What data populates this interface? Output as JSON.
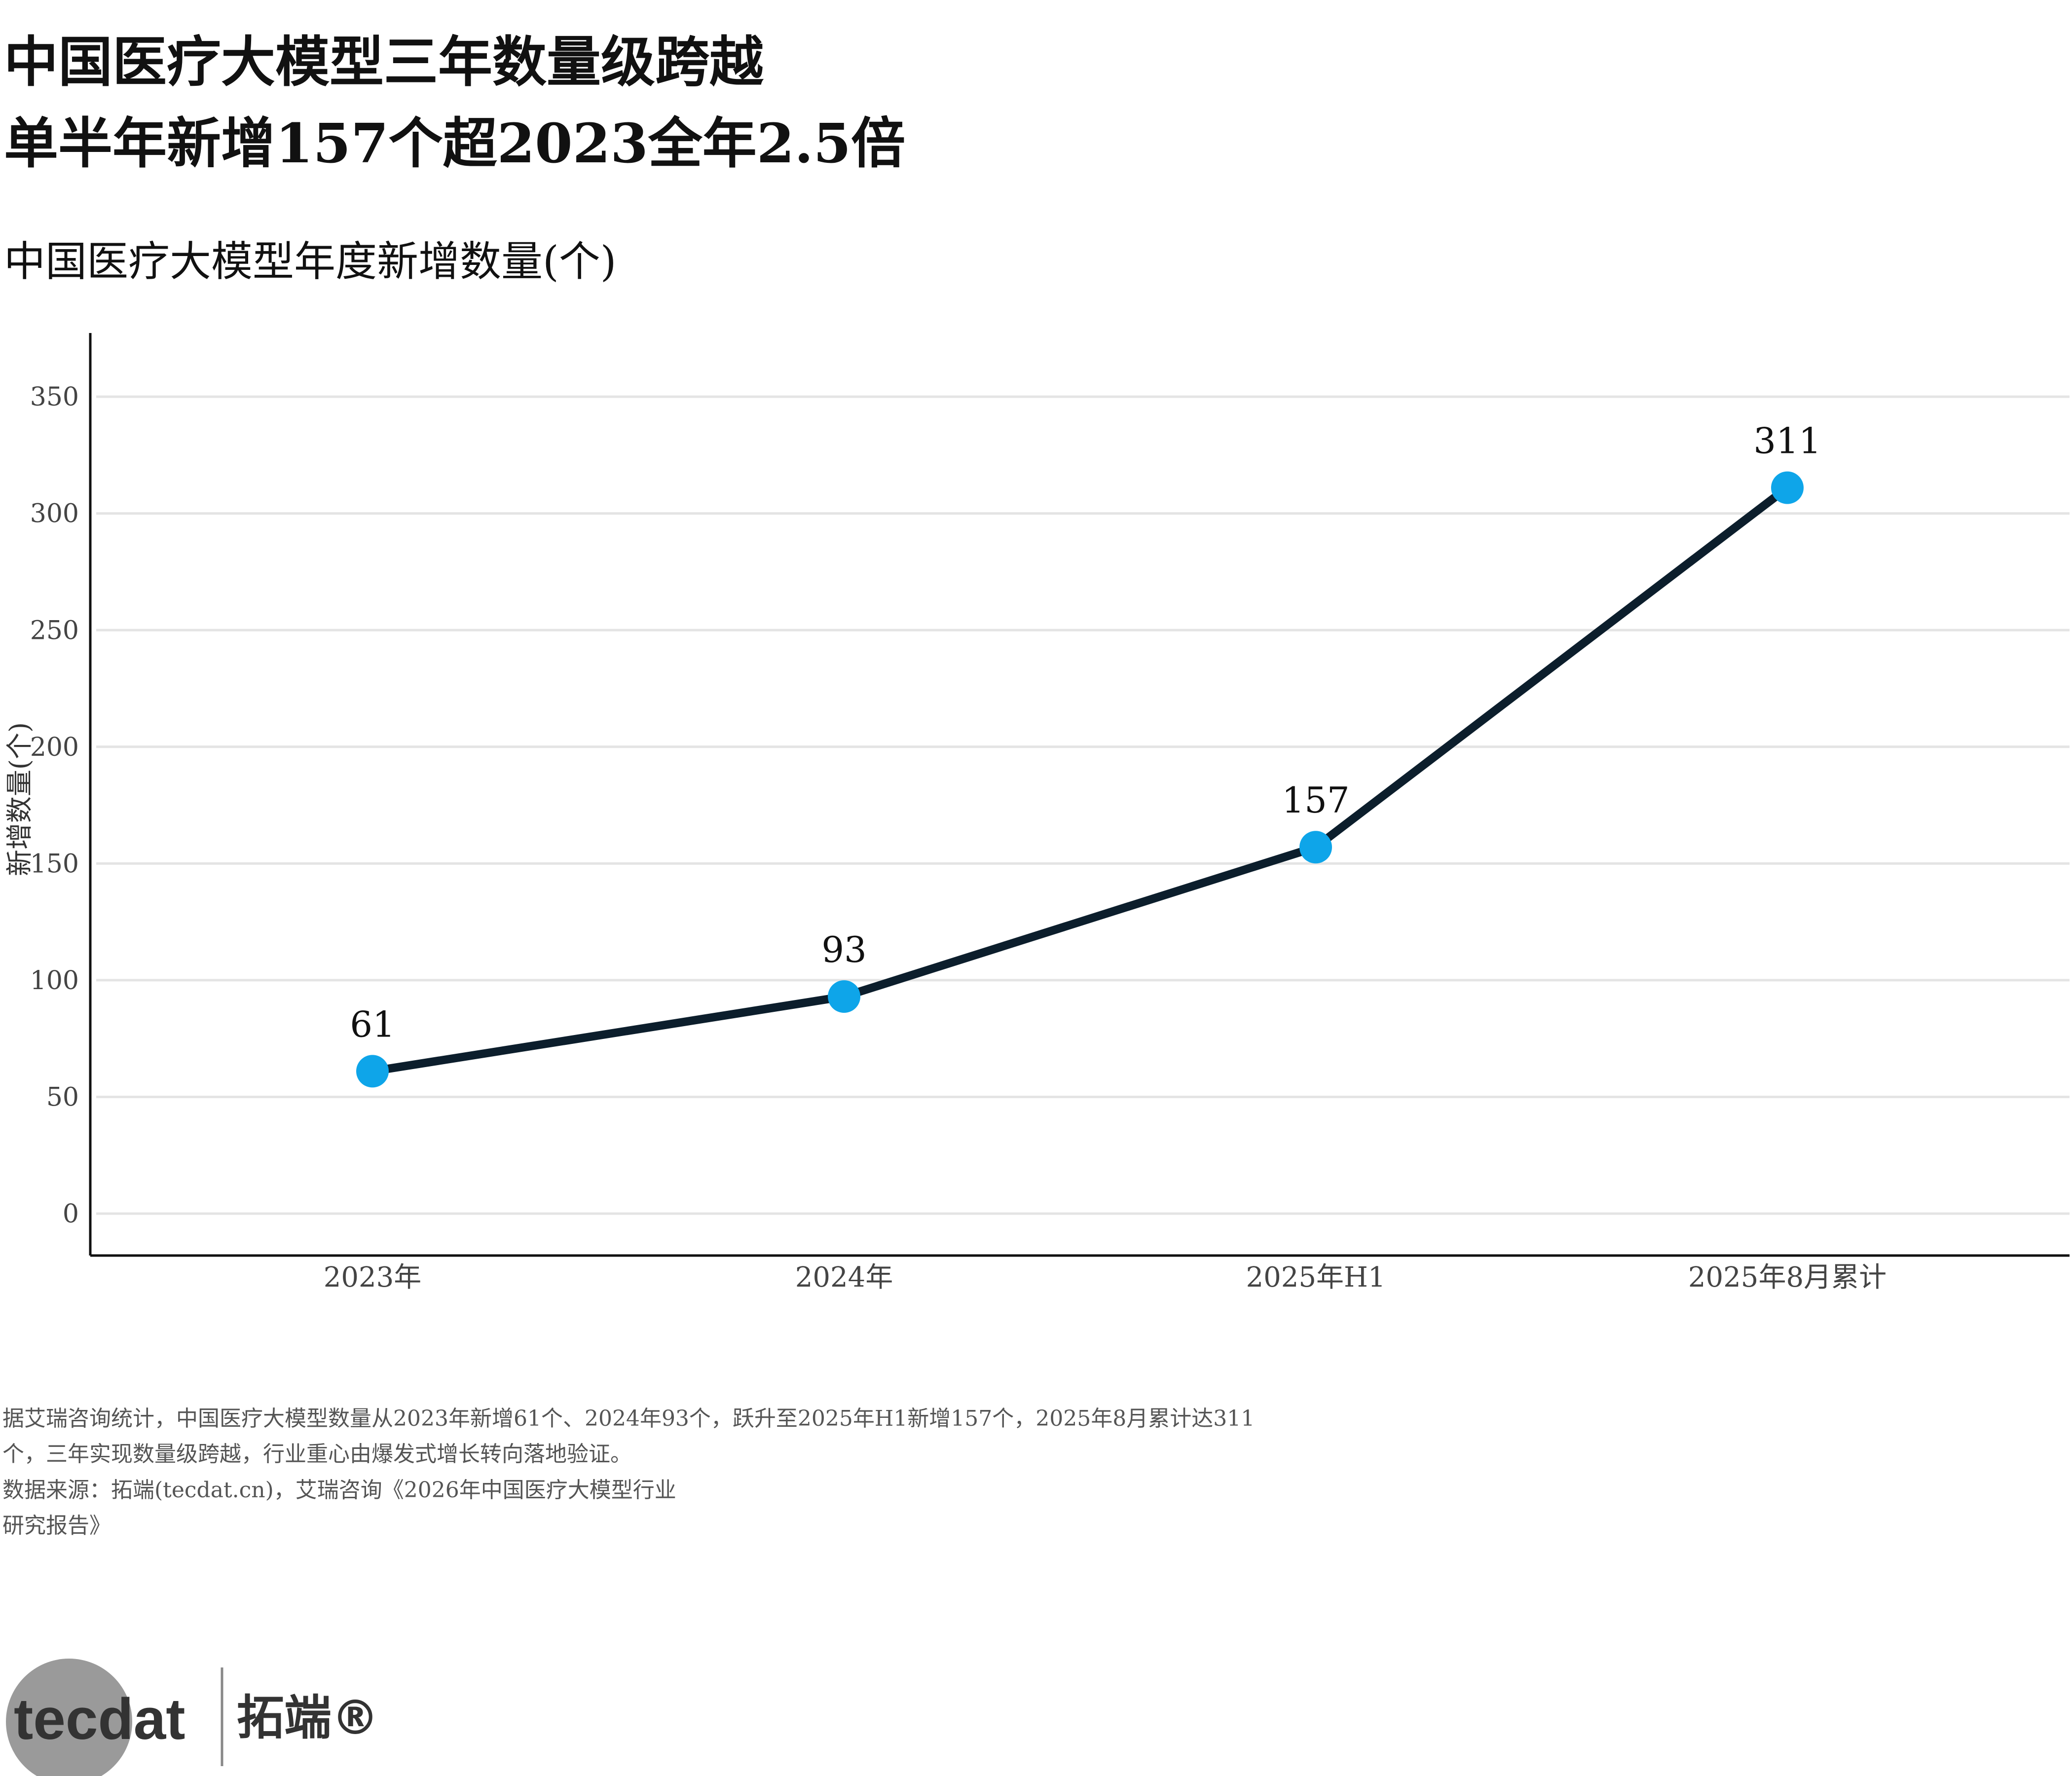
{
  "header": {
    "title_line1": "中国医疗大模型三年数量级跨越",
    "title_line2": "单半年新增157个超2023全年2.5倍",
    "subtitle": "中国医疗大模型年度新增数量(个)"
  },
  "chart_data": {
    "type": "line",
    "categories": [
      "2023年",
      "2024年",
      "2025年H1",
      "2025年8月累计"
    ],
    "values": [
      61,
      93,
      157,
      311
    ],
    "data_labels": [
      "61",
      "93",
      "157",
      "311"
    ],
    "title": "中国医疗大模型年度新增数量(个)",
    "xlabel": "",
    "ylabel": "新增数量(个)",
    "ylim": [
      0,
      350
    ],
    "yticks": [
      0,
      50,
      100,
      150,
      200,
      250,
      300,
      350
    ],
    "ytick_labels": [
      "0",
      "50",
      "100",
      "150",
      "200",
      "250",
      "300",
      "350"
    ],
    "grid": true,
    "line_color": "#0c1e2c",
    "marker_color": "#0ea5e9"
  },
  "captions": {
    "note_line1": "据艾瑞咨询统计，中国医疗大模型数量从2023年新增61个、2024年93个，跃升至2025年H1新增157个，2025年8月累计达311",
    "note_line2": "个，三年实现数量级跨越，行业重心由爆发式增长转向落地验证。",
    "source_line1": "数据来源：拓端(tecdat.cn)，艾瑞咨询《2026年中国医疗大模型行业",
    "source_line2": "研究报告》"
  },
  "logo": {
    "word": "tecdat",
    "brand": "拓端®"
  }
}
